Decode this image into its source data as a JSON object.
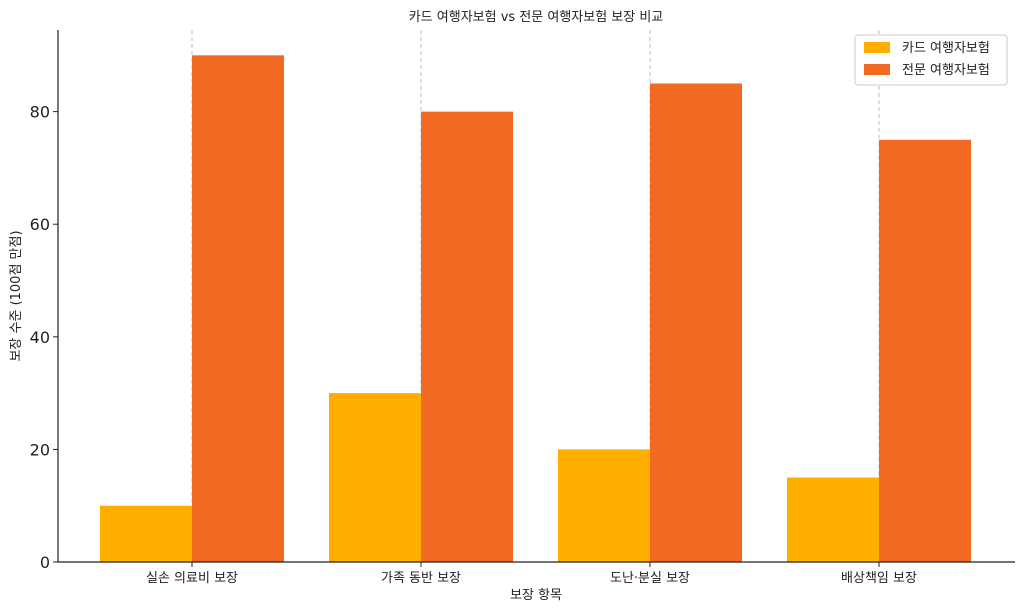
{
  "chart_data": {
    "type": "bar",
    "title": "카드 여행자보험 vs 전문 여행자보험 보장 비교",
    "xlabel": "보장 항목",
    "ylabel": "보장 수준 (100점 만점)",
    "categories": [
      "실손 의료비 보장",
      "가족 동반 보장",
      "도난·분실 보장",
      "배상책임 보장"
    ],
    "series": [
      {
        "name": "카드 여행자보험",
        "values": [
          10,
          30,
          20,
          15
        ],
        "color": "#FFAE00"
      },
      {
        "name": "전문 여행자보험",
        "values": [
          90,
          80,
          85,
          75
        ],
        "color": "#F26A21"
      }
    ],
    "ylim": [
      0,
      94.5
    ],
    "yticks": [
      "0",
      "20",
      "40",
      "60",
      "80"
    ],
    "grid": "x-only-dashed",
    "legend_position": "top-right"
  }
}
